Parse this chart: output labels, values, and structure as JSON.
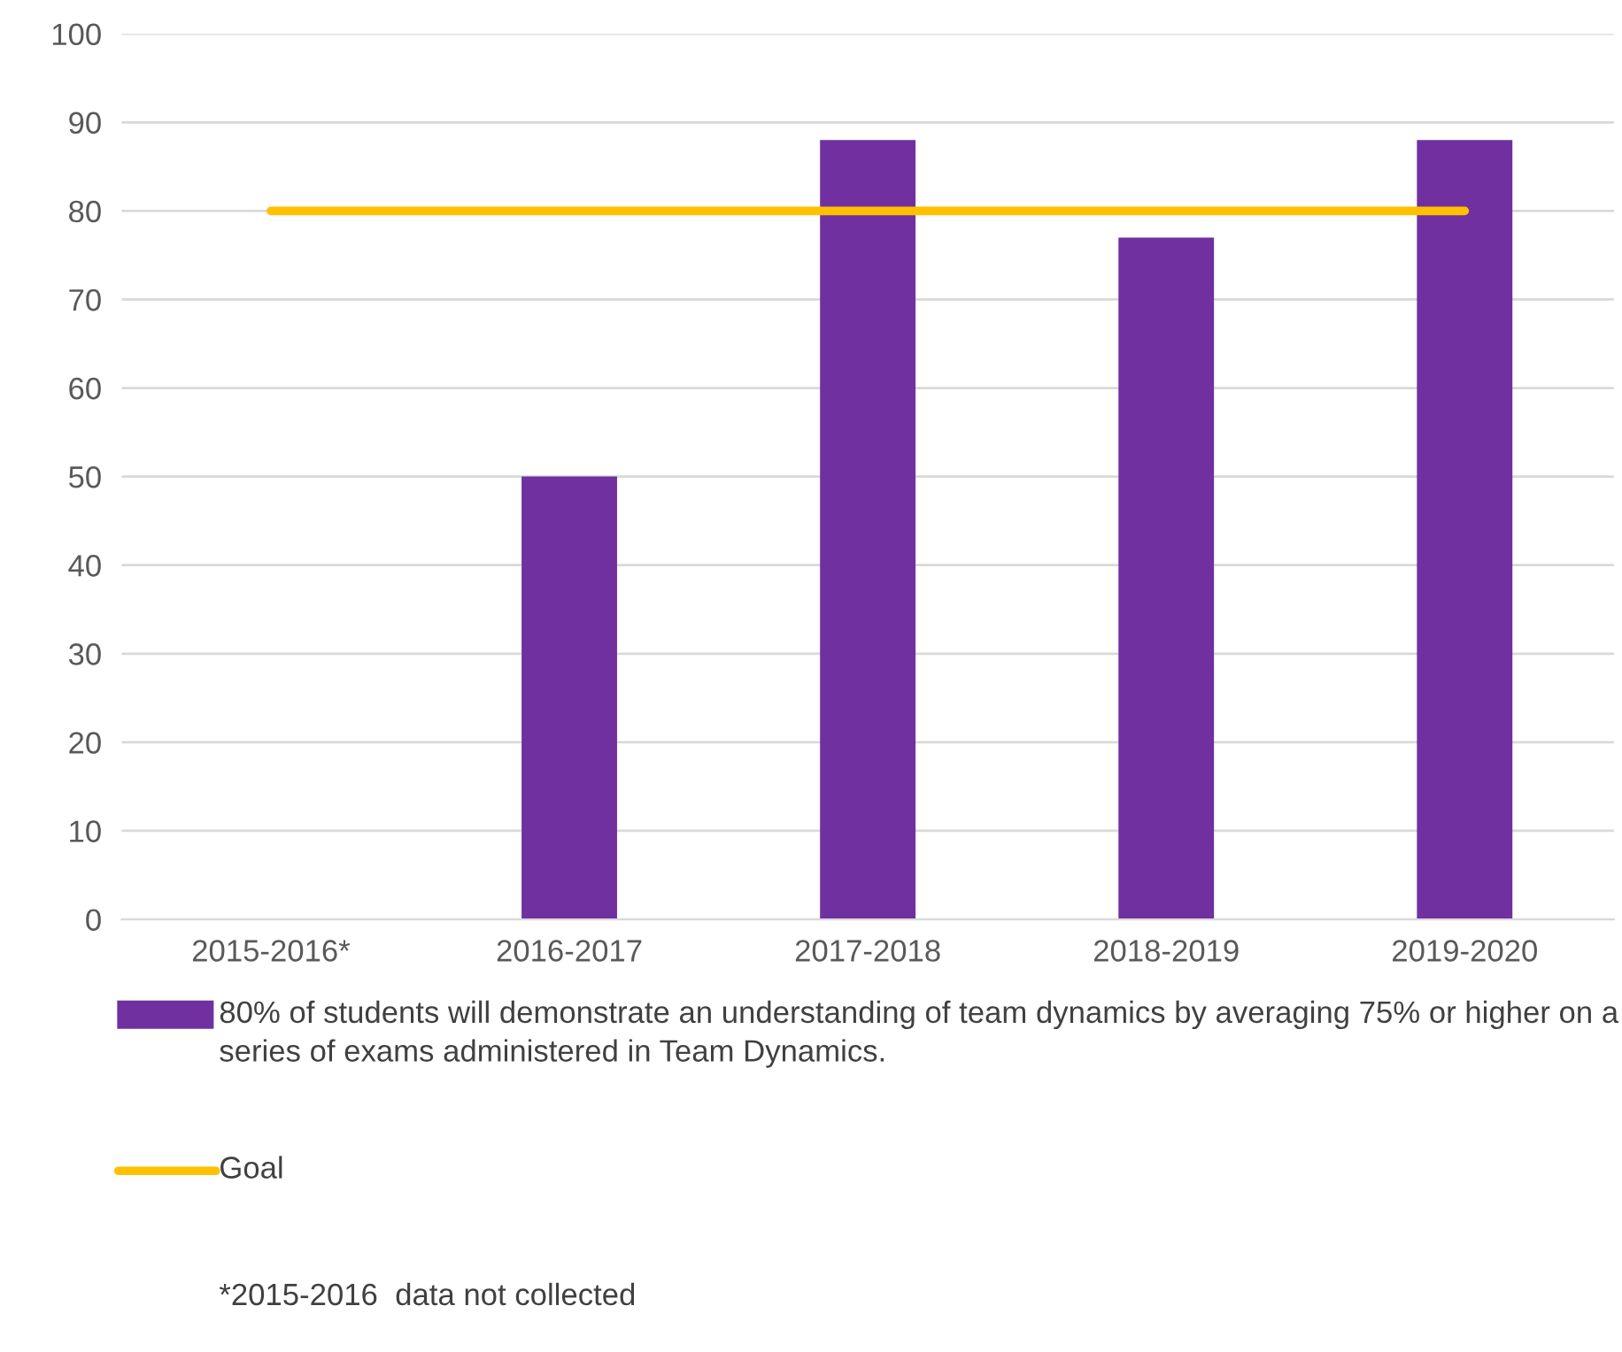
{
  "chart_data": {
    "type": "bar",
    "categories": [
      "2015-2016*",
      "2016-2017",
      "2017-2018",
      "2018-2019",
      "2019-2020"
    ],
    "series": [
      {
        "name": "80% of students will demonstrate an understanding of team dynamics by averaging 75% or higher on a series of exams administered in Team Dynamics.",
        "color": "#7030a0",
        "values": [
          null,
          50,
          88,
          77,
          88
        ]
      },
      {
        "name": "Goal",
        "type": "line",
        "color": "#ffc000",
        "values": [
          80,
          80,
          80,
          80,
          80
        ]
      }
    ],
    "ylim": [
      0,
      100
    ],
    "yticks": [
      0,
      10,
      20,
      30,
      40,
      50,
      60,
      70,
      80,
      90,
      100
    ],
    "grid": "y",
    "legend": "bottom",
    "annotations": [
      "*2015-2016  data not collected"
    ]
  }
}
